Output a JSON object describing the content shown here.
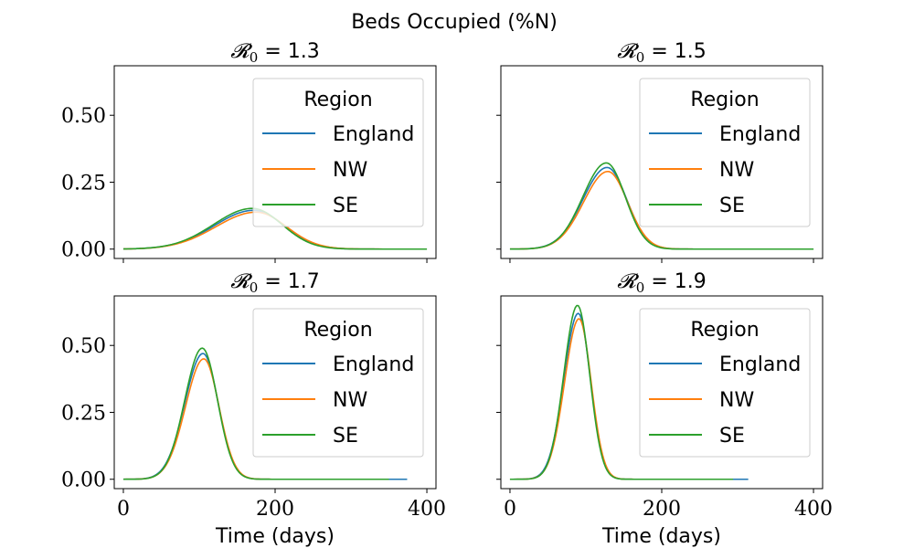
{
  "figure": {
    "suptitle": "Beds Occupied (%N)"
  },
  "chart_data": [
    {
      "type": "line",
      "title": "𝓡0 = 1.3",
      "title_parts": {
        "symbol": "𝓡",
        "sub": "0",
        "rest": " = 1.3"
      },
      "xlabel": "",
      "ylabel": "",
      "xlim": [
        -12,
        412
      ],
      "ylim": [
        -0.035,
        0.685
      ],
      "xticks": [
        0,
        200,
        400
      ],
      "xtick_labels": [
        "",
        "",
        ""
      ],
      "yticks": [
        0.0,
        0.25,
        0.5
      ],
      "ytick_labels": [
        "0.00",
        "0.25",
        "0.50"
      ],
      "legend": {
        "title": "Region",
        "placement": "upper right"
      },
      "series": [
        {
          "name": "England",
          "color": "#1f77b4",
          "peak_x": 172,
          "peak_y": 0.145,
          "rise": 52,
          "fall": 40,
          "x_end": 400
        },
        {
          "name": "NW",
          "color": "#ff7f0e",
          "peak_x": 175,
          "peak_y": 0.138,
          "rise": 53,
          "fall": 40,
          "x_end": 400
        },
        {
          "name": "SE",
          "color": "#2ca02c",
          "peak_x": 170,
          "peak_y": 0.152,
          "rise": 51,
          "fall": 39,
          "x_end": 400
        }
      ]
    },
    {
      "type": "line",
      "title": "𝓡0 = 1.5",
      "title_parts": {
        "symbol": "𝓡",
        "sub": "0",
        "rest": " = 1.5"
      },
      "xlabel": "",
      "ylabel": "",
      "xlim": [
        -12,
        412
      ],
      "ylim": [
        -0.035,
        0.685
      ],
      "xticks": [
        0,
        200,
        400
      ],
      "xtick_labels": [
        "",
        "",
        ""
      ],
      "yticks": [
        0.0,
        0.25,
        0.5
      ],
      "ytick_labels": [
        "",
        "",
        ""
      ],
      "legend": {
        "title": "Region",
        "placement": "upper right"
      },
      "series": [
        {
          "name": "England",
          "color": "#1f77b4",
          "peak_x": 128,
          "peak_y": 0.305,
          "rise": 32,
          "fall": 26,
          "x_end": 400
        },
        {
          "name": "NW",
          "color": "#ff7f0e",
          "peak_x": 129,
          "peak_y": 0.29,
          "rise": 32,
          "fall": 26,
          "x_end": 400
        },
        {
          "name": "SE",
          "color": "#2ca02c",
          "peak_x": 127,
          "peak_y": 0.322,
          "rise": 31,
          "fall": 25,
          "x_end": 400
        }
      ]
    },
    {
      "type": "line",
      "title": "𝓡0 = 1.7",
      "title_parts": {
        "symbol": "𝓡",
        "sub": "0",
        "rest": " = 1.7"
      },
      "xlabel": "Time (days)",
      "ylabel": "",
      "xlim": [
        -12,
        412
      ],
      "ylim": [
        -0.035,
        0.685
      ],
      "xticks": [
        0,
        200,
        400
      ],
      "xtick_labels": [
        "0",
        "200",
        "400"
      ],
      "yticks": [
        0.0,
        0.25,
        0.5
      ],
      "ytick_labels": [
        "0.00",
        "0.25",
        "0.50"
      ],
      "legend": {
        "title": "Region",
        "placement": "upper right"
      },
      "series": [
        {
          "name": "England",
          "color": "#1f77b4",
          "peak_x": 105,
          "peak_y": 0.47,
          "rise": 24,
          "fall": 20,
          "x_end": 375
        },
        {
          "name": "NW",
          "color": "#ff7f0e",
          "peak_x": 106,
          "peak_y": 0.45,
          "rise": 24,
          "fall": 20,
          "x_end": 345
        },
        {
          "name": "SE",
          "color": "#2ca02c",
          "peak_x": 104,
          "peak_y": 0.49,
          "rise": 23,
          "fall": 20,
          "x_end": 350
        }
      ]
    },
    {
      "type": "line",
      "title": "𝓡0 = 1.9",
      "title_parts": {
        "symbol": "𝓡",
        "sub": "0",
        "rest": " = 1.9"
      },
      "xlabel": "Time (days)",
      "ylabel": "",
      "xlim": [
        -12,
        412
      ],
      "ylim": [
        -0.035,
        0.685
      ],
      "xticks": [
        0,
        200,
        400
      ],
      "xtick_labels": [
        "0",
        "200",
        "400"
      ],
      "yticks": [
        0.0,
        0.25,
        0.5
      ],
      "ytick_labels": [
        "",
        "",
        ""
      ],
      "legend": {
        "title": "Region",
        "placement": "upper right"
      },
      "series": [
        {
          "name": "England",
          "color": "#1f77b4",
          "peak_x": 90,
          "peak_y": 0.62,
          "rise": 19,
          "fall": 16,
          "x_end": 315
        },
        {
          "name": "NW",
          "color": "#ff7f0e",
          "peak_x": 91,
          "peak_y": 0.6,
          "rise": 19,
          "fall": 16,
          "x_end": 292
        },
        {
          "name": "SE",
          "color": "#2ca02c",
          "peak_x": 89,
          "peak_y": 0.65,
          "rise": 18,
          "fall": 16,
          "x_end": 295
        }
      ]
    }
  ]
}
